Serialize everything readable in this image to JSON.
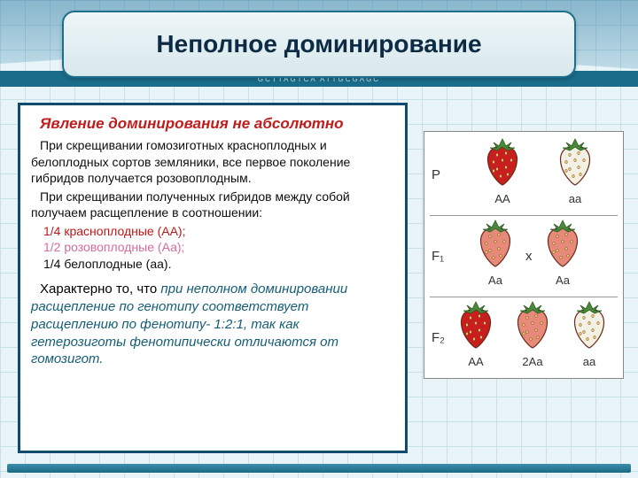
{
  "title": "Неполное доминирование",
  "dna_text": "GCTTAGTCA   ATTGCGAGC",
  "subtitle": "Явление доминирования не абсолютно",
  "para1": "При скрещивании гомозиготных красноплодных и белоплодных сортов земляники, все первое поколение гибридов получается розовоплодным.",
  "para2": "При скрещивании   полученных гибридов   между собой получаем расщепление в соотношении:",
  "ratio_red": "1/4 красноплодные (АА);",
  "ratio_pink": "1/2 розовоплодные (Аа);",
  "ratio_white": "1/4 белоплодные (аа).",
  "conclusion_lead": "Характерно то, что ",
  "conclusion_italic": "при неполном доминировании расщепление по генотипу соответствует расщеплению по фенотипу- 1:2:1, так как гетерозиготы фенотипически отличаются от гомозигот.",
  "gen_labels": {
    "P": "P",
    "F1": "F₁",
    "F2": "F₂",
    "cross": "x"
  },
  "genotypes": {
    "AA": "АА",
    "aa": "аа",
    "Aa": "Аа",
    "two_Aa": "2Аа"
  },
  "colors": {
    "red_fruit": "#c91e1e",
    "pink_fruit": "#e88a7a",
    "white_fruit": "#f3f0e4",
    "leaf": "#4a8a3a",
    "seed": "#e8d070",
    "outline": "#6b2a1a"
  }
}
